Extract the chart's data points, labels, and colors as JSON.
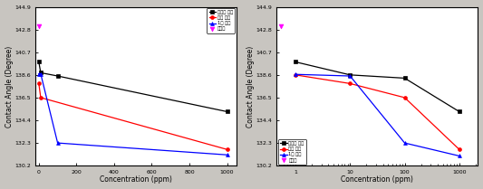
{
  "left": {
    "black_x": [
      0,
      10,
      100,
      1000
    ],
    "black_y": [
      139.8,
      138.8,
      138.5,
      135.2
    ],
    "red_x": [
      0,
      10,
      1000
    ],
    "red_y": [
      137.8,
      136.5,
      131.7
    ],
    "blue_x": [
      0,
      10,
      100,
      1000
    ],
    "blue_y": [
      138.7,
      138.7,
      132.3,
      131.2
    ],
    "magenta_x": [
      3
    ],
    "magenta_y": [
      143.1
    ],
    "xlim": [
      -20,
      1050
    ],
    "xticks": [
      0,
      200,
      400,
      600,
      800,
      1000
    ],
    "ylim": [
      130.2,
      144.9
    ],
    "yticks": [
      130.2,
      132.3,
      134.4,
      136.5,
      138.6,
      140.7,
      142.8,
      144.9
    ]
  },
  "right": {
    "black_x": [
      1,
      10,
      100,
      1000
    ],
    "black_y": [
      139.8,
      138.6,
      138.3,
      135.2
    ],
    "red_x": [
      1,
      10,
      100,
      1000
    ],
    "red_y": [
      138.6,
      137.8,
      136.5,
      131.7
    ],
    "blue_x": [
      1,
      10,
      100,
      1000
    ],
    "blue_y": [
      138.65,
      138.5,
      132.3,
      131.1
    ],
    "magenta_x": [
      0.55
    ],
    "magenta_y": [
      143.1
    ],
    "xlim": [
      0.45,
      2200
    ],
    "ylim": [
      130.2,
      144.9
    ],
    "yticks": [
      130.2,
      132.3,
      134.4,
      136.5,
      138.6,
      140.7,
      142.8,
      144.9
    ]
  },
  "colors": {
    "black": "#000000",
    "red": "#ff0000",
    "blue": "#0000ff",
    "magenta": "#ff00ff"
  },
  "legend_labels": [
    "나드른 세제",
    "컴류 세제",
    "1층 세제",
    "초순수"
  ],
  "xlabel": "Concentration (ppm)",
  "ylabel": "Contact Angle (Degree)",
  "bg_color": "#c8c5c0"
}
